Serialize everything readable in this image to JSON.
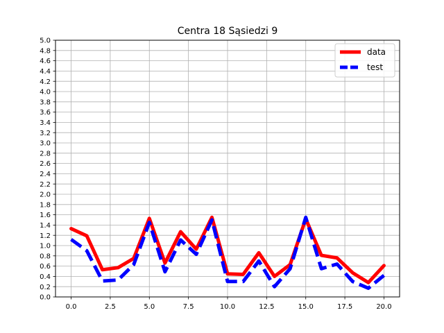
{
  "chart_data": {
    "type": "line",
    "title": "Centra 18 Sąsiedzi 9",
    "xlabel": "",
    "ylabel": "",
    "xlim": [
      -1,
      21
    ],
    "ylim": [
      0,
      5
    ],
    "x_ticks": [
      0.0,
      2.5,
      5.0,
      7.5,
      10.0,
      12.5,
      15.0,
      17.5,
      20.0
    ],
    "x_tick_labels": [
      "0.0",
      "2.5",
      "5.0",
      "7.5",
      "10.0",
      "12.5",
      "15.0",
      "17.5",
      "20.0"
    ],
    "y_ticks": [
      0.0,
      0.2,
      0.4,
      0.6,
      0.8,
      1.0,
      1.2,
      1.4,
      1.6,
      1.8,
      2.0,
      2.2,
      2.4,
      2.6,
      2.8,
      3.0,
      3.2,
      3.4,
      3.6,
      3.8,
      4.0,
      4.2,
      4.4,
      4.6,
      4.8,
      5.0
    ],
    "y_tick_labels": [
      "0.0",
      "0.2",
      "0.4",
      "0.6",
      "0.8",
      "1.0",
      "1.2",
      "1.4",
      "1.6",
      "1.8",
      "2.0",
      "2.2",
      "2.4",
      "2.6",
      "2.8",
      "3.0",
      "3.2",
      "3.4",
      "3.6",
      "3.8",
      "4.0",
      "4.2",
      "4.4",
      "4.6",
      "4.8",
      "5.0"
    ],
    "grid": true,
    "legend_position": "top-right",
    "x": [
      0,
      1,
      2,
      3,
      4,
      5,
      6,
      7,
      8,
      9,
      10,
      11,
      12,
      13,
      14,
      15,
      16,
      17,
      18,
      19,
      20
    ],
    "series": [
      {
        "name": "data",
        "color": "#ff0000",
        "style": "solid",
        "values": [
          1.33,
          1.19,
          0.53,
          0.57,
          0.75,
          1.53,
          0.66,
          1.27,
          0.93,
          1.55,
          0.45,
          0.44,
          0.86,
          0.4,
          0.63,
          1.52,
          0.81,
          0.76,
          0.47,
          0.28,
          0.61
        ]
      },
      {
        "name": "test",
        "color": "#0000ff",
        "style": "dashed",
        "values": [
          1.12,
          0.9,
          0.31,
          0.33,
          0.63,
          1.45,
          0.49,
          1.11,
          0.83,
          1.5,
          0.3,
          0.3,
          0.7,
          0.2,
          0.55,
          1.55,
          0.55,
          0.64,
          0.3,
          0.17,
          0.42
        ]
      }
    ]
  }
}
